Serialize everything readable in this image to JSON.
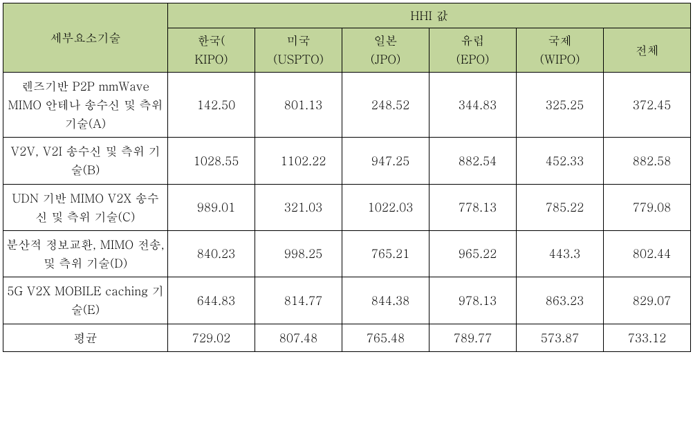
{
  "table": {
    "background_header": "#c2d59c",
    "border_color": "#000000",
    "font_size": 17,
    "row_header_label": "세부요소기술",
    "group_header_label": "HHI 값",
    "columns": [
      {
        "line1": "한국(",
        "line2": "KIPO)"
      },
      {
        "line1": "미국",
        "line2": "(USPTO)"
      },
      {
        "line1": "일본",
        "line2": "(JPO)"
      },
      {
        "line1": "유럽",
        "line2": "(EPO)"
      },
      {
        "line1": "국제",
        "line2": "(WIPO)"
      },
      {
        "line1": "전체",
        "line2": ""
      }
    ],
    "rows": [
      {
        "name": "렌즈기반 P2P mmWave MIMO 안테나 송수신 및 측위 기술(A)",
        "values": [
          "142.50",
          "801.13",
          "248.52",
          "344.83",
          "325.25",
          "372.45"
        ]
      },
      {
        "name": "V2V, V2I 송수신 및 측위 기술(B)",
        "values": [
          "1028.55",
          "1102.22",
          "947.25",
          "882.54",
          "452.33",
          "882.58"
        ]
      },
      {
        "name": "UDN 기반 MIMO V2X 송수신 및 측위 기술(C)",
        "values": [
          "989.01",
          "321.03",
          "1022.03",
          "778.13",
          "785.22",
          "779.08"
        ]
      },
      {
        "name": "분산적 정보교환, MIMO 전송, 및 측위 기술(D)",
        "values": [
          "840.23",
          "998.25",
          "765.21",
          "965.22",
          "443.3",
          "802.44"
        ]
      },
      {
        "name": "5G V2X MOBILE caching 기술(E)",
        "values": [
          "644.83",
          "814.77",
          "844.38",
          "978.13",
          "863.23",
          "829.07"
        ]
      }
    ],
    "average": {
      "label": "평균",
      "values": [
        "729.02",
        "807.48",
        "765.48",
        "789.77",
        "573.87",
        "733.12"
      ]
    }
  }
}
